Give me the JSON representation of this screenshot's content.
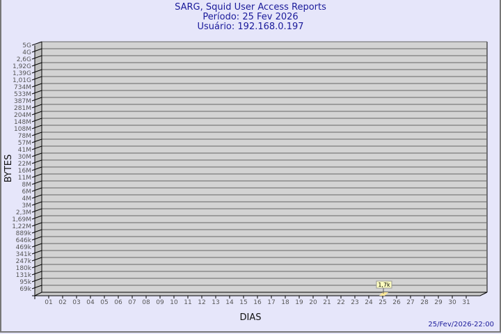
{
  "header": {
    "title": "SARG, Squid User Access Reports",
    "period": "Período: 25 Fev 2026",
    "user": "Usuário: 192.168.0.197"
  },
  "footer": {
    "timestamp": "25/Fev/2026-22:00"
  },
  "colors": {
    "background": "#e6e6fa",
    "plot": "#d3d3d3",
    "bar": "#ffe89a",
    "title": "#1a1a9a"
  },
  "chart_data": {
    "type": "bar",
    "xlabel": "DIAS",
    "ylabel": "BYTES",
    "y_scale": "log",
    "grid": true,
    "categories": [
      "01",
      "02",
      "03",
      "04",
      "05",
      "06",
      "07",
      "08",
      "09",
      "10",
      "11",
      "12",
      "13",
      "14",
      "15",
      "16",
      "17",
      "18",
      "19",
      "20",
      "21",
      "22",
      "23",
      "24",
      "25",
      "26",
      "27",
      "28",
      "29",
      "30",
      "31"
    ],
    "y_tick_labels": [
      "5G",
      "4G",
      "2,6G",
      "1,92G",
      "1,39G",
      "1,01G",
      "734M",
      "533M",
      "387M",
      "281M",
      "204M",
      "148M",
      "108M",
      "78M",
      "57M",
      "41M",
      "30M",
      "22M",
      "16M",
      "11M",
      "8M",
      "6M",
      "4M",
      "3M",
      "2,3M",
      "1,69M",
      "1,22M",
      "889k",
      "646k",
      "469k",
      "341k",
      "247k",
      "180k",
      "131k",
      "95k",
      "69k"
    ],
    "series": [
      {
        "values": [
          null,
          null,
          null,
          null,
          null,
          null,
          null,
          null,
          null,
          null,
          null,
          null,
          null,
          null,
          null,
          null,
          null,
          null,
          null,
          null,
          null,
          null,
          null,
          null,
          1700,
          null,
          null,
          null,
          null,
          null,
          null
        ]
      }
    ],
    "data_labels": [
      {
        "category": "25",
        "label": "1,7k"
      }
    ]
  }
}
